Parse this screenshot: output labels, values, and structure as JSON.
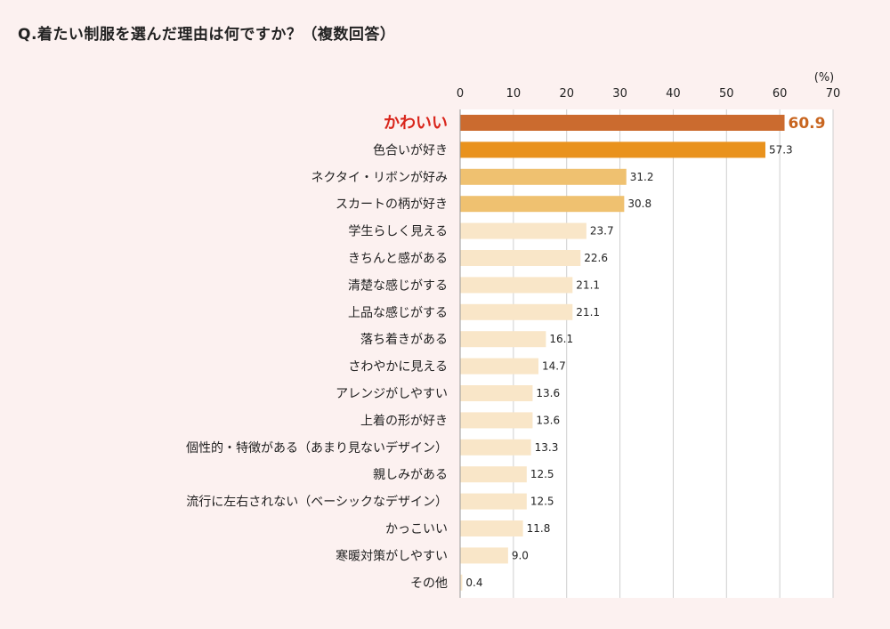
{
  "title": "Q.着たい制服を選んだ理由は何ですか？（複数回答）",
  "chart_data": {
    "type": "bar",
    "orientation": "horizontal",
    "title": "Q.着たい制服を選んだ理由は何ですか？（複数回答）",
    "unit": "(%)",
    "xlim": [
      0,
      70
    ],
    "ticks": [
      0,
      10,
      20,
      30,
      40,
      50,
      60,
      70
    ],
    "grid": true,
    "categories": [
      "かわいい",
      "色合いが好き",
      "ネクタイ・リボンが好み",
      "スカートの柄が好き",
      "学生らしく見える",
      "きちんと感がある",
      "清楚な感じがする",
      "上品な感じがする",
      "落ち着きがある",
      "さわやかに見える",
      "アレンジがしやすい",
      "上着の形が好き",
      "個性的・特徴がある（あまり見ないデザイン）",
      "親しみがある",
      "流行に左右されない（ベーシックなデザイン）",
      "かっこいい",
      "寒暖対策がしやすい",
      "その他"
    ],
    "values": [
      60.9,
      57.3,
      31.2,
      30.8,
      23.7,
      22.6,
      21.1,
      21.1,
      16.1,
      14.7,
      13.6,
      13.6,
      13.3,
      12.5,
      12.5,
      11.8,
      9.0,
      0.4
    ],
    "value_labels": [
      "60.9",
      "57.3",
      "31.2",
      "30.8",
      "23.7",
      "22.6",
      "21.1",
      "21.1",
      "16.1",
      "14.7",
      "13.6",
      "13.6",
      "13.3",
      "12.5",
      "12.5",
      "11.8",
      "9.0",
      "0.4"
    ],
    "colors": {
      "rank1": "#cb6b2f",
      "rank2": "#e9921d",
      "rank3_4": "#efc170",
      "others": "#f9e6c8",
      "highlight_label": "#d9261c",
      "highlight_value": "#c8651f",
      "plot_bg": "#ffffff",
      "grid": "#cfcfcf"
    }
  }
}
